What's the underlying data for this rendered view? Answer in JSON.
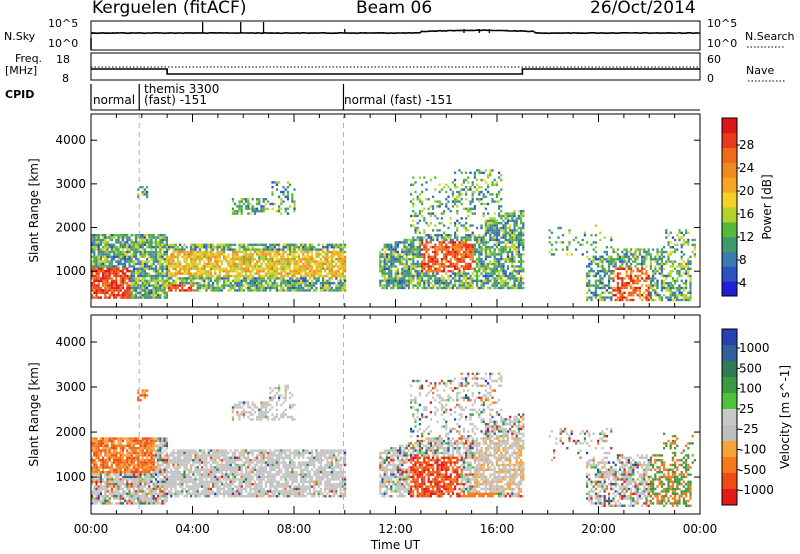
{
  "header": {
    "station": "Kerguelen (fitACF)",
    "beam": "Beam 06",
    "date": "26/Oct/2014"
  },
  "panels": {
    "nsky": {
      "label": "N.Sky",
      "ticks_left": [
        "10^5",
        "10^0"
      ],
      "ticks_right": [
        "10^5",
        "10^0"
      ],
      "right_label": "N.Search"
    },
    "freq": {
      "label_line1": "Freq.",
      "label_line2": "[MHz]",
      "ticks_left": [
        "18",
        "8"
      ],
      "ticks_right": [
        "60",
        "0"
      ],
      "right_label": "Nave"
    },
    "cpid": {
      "label": "CPID",
      "segments": [
        "normal",
        "themis 3300",
        "(fast) -151",
        "normal (fast) -151"
      ]
    }
  },
  "colors": {
    "power_scale": [
      "#1f1fd6",
      "#2a52be",
      "#3b7bb0",
      "#3e9a6a",
      "#57b83c",
      "#b4d32a",
      "#f2d225",
      "#f5a623",
      "#f08a1e",
      "#ef6b1a",
      "#e8391a",
      "#dd1515"
    ],
    "velocity_scale": [
      "#e31a1c",
      "#f04a16",
      "#f5781e",
      "#f7a33a",
      "#bebebe",
      "#c8c8c8",
      "#4cc33b",
      "#3a9a3f",
      "#2e7b54",
      "#305f9c",
      "#2840b0"
    ],
    "ground_scatter": "#bcbcbc"
  },
  "chart_data": [
    {
      "type": "heatmap",
      "title": "",
      "xlabel": "",
      "ylabel": "Slant Range [km]",
      "xlim": [
        "00:00",
        "00:00"
      ],
      "ylim": [
        180,
        4600
      ],
      "x_ticks": [
        "00:00",
        "04:00",
        "08:00",
        "12:00",
        "16:00",
        "20:00",
        "00:00"
      ],
      "y_ticks": [
        1000,
        2000,
        3000,
        4000
      ],
      "colorbar": {
        "label": "Power [dB]",
        "ticks": [
          "28",
          "24",
          "20",
          "16",
          "12",
          "8",
          "4"
        ],
        "range": [
          0,
          30
        ]
      },
      "echo_regions": [
        {
          "t_start": 0.0,
          "t_end": 3.0,
          "r_low": 600,
          "r_high": 1900,
          "peak_db": 26
        },
        {
          "t_start": 3.0,
          "t_end": 10.0,
          "r_low": 700,
          "r_high": 1600,
          "peak_db": 20
        },
        {
          "t_start": 12.0,
          "t_end": 17.0,
          "r_low": 700,
          "r_high": 2200,
          "peak_db": 24
        },
        {
          "t_start": 19.5,
          "t_end": 23.5,
          "r_low": 400,
          "r_high": 1400,
          "peak_db": 22
        }
      ]
    },
    {
      "type": "heatmap",
      "title": "",
      "xlabel": "Time UT",
      "ylabel": "Slant Range [km]",
      "xlim": [
        "00:00",
        "00:00"
      ],
      "ylim": [
        180,
        4600
      ],
      "x_ticks": [
        "00:00",
        "04:00",
        "08:00",
        "12:00",
        "16:00",
        "20:00",
        "00:00"
      ],
      "y_ticks": [
        1000,
        2000,
        3000,
        4000
      ],
      "colorbar": {
        "label": "Velocity [m s^-1]",
        "ticks": [
          "1000",
          "500",
          "100",
          "25",
          "-25",
          "-100",
          "-500",
          "-1000"
        ]
      },
      "echo_regions": [
        {
          "t_start": 0.5,
          "t_end": 3.0,
          "r_low": 1000,
          "r_high": 1900,
          "velocity": -300
        },
        {
          "t_start": 3.0,
          "t_end": 10.0,
          "r_low": 600,
          "r_high": 1700,
          "velocity": 0
        },
        {
          "t_start": 12.5,
          "t_end": 15.0,
          "r_low": 450,
          "r_high": 2000,
          "velocity": -400
        },
        {
          "t_start": 20.0,
          "t_end": 23.5,
          "r_low": 500,
          "r_high": 1500,
          "velocity": -100
        }
      ]
    }
  ]
}
